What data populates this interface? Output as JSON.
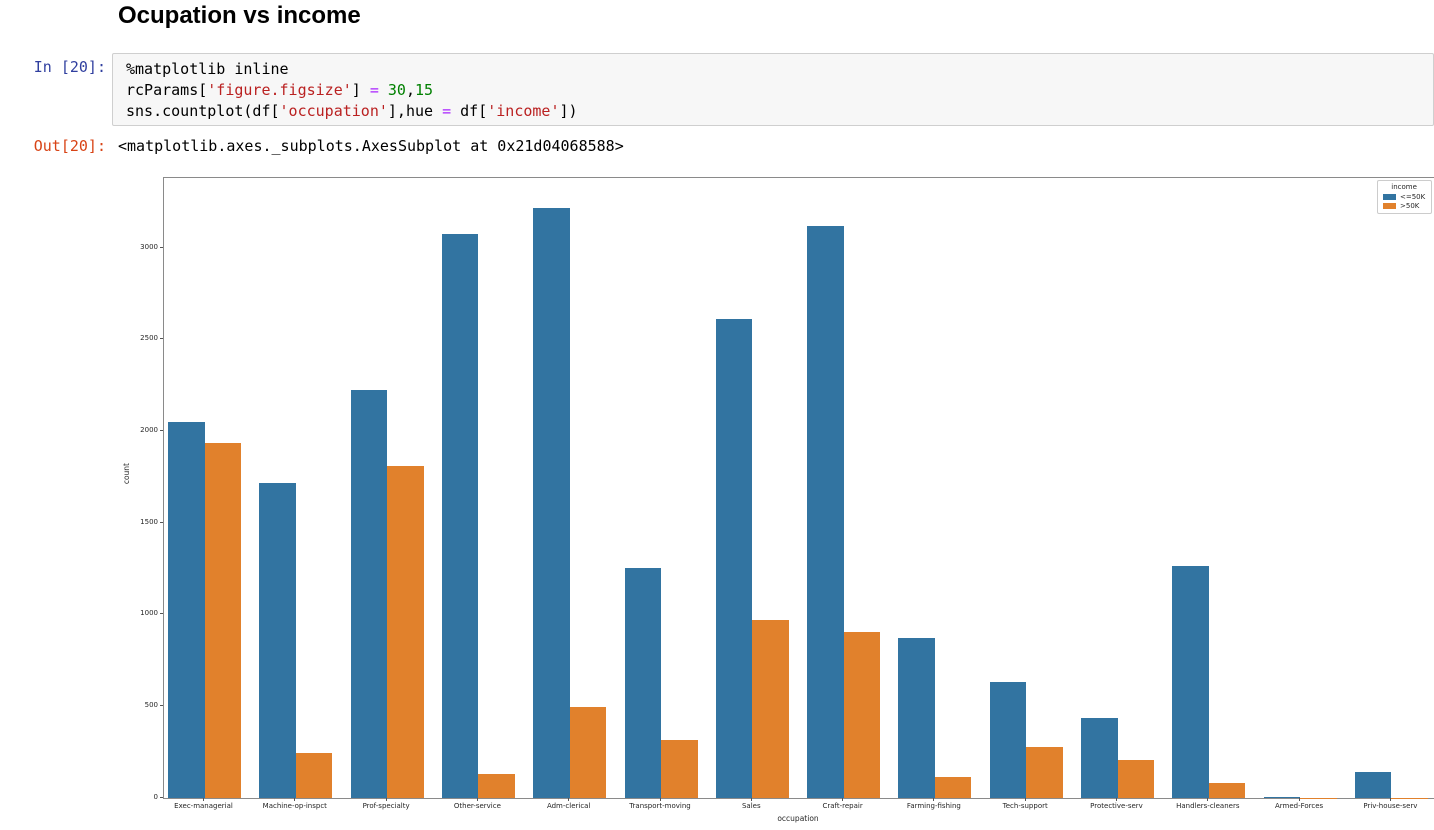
{
  "notebook": {
    "markdown_title": "Ocupation vs income",
    "cell": {
      "in_prompt": "In [20]:",
      "out_prompt": "Out[20]:",
      "code_lines": [
        [
          {
            "t": "%matplotlib inline",
            "c": "plain"
          }
        ],
        [
          {
            "t": "rcParams[",
            "c": "plain"
          },
          {
            "t": "'figure.figsize'",
            "c": "str"
          },
          {
            "t": "] ",
            "c": "plain"
          },
          {
            "t": "=",
            "c": "op"
          },
          {
            "t": " ",
            "c": "plain"
          },
          {
            "t": "30",
            "c": "num"
          },
          {
            "t": ",",
            "c": "plain"
          },
          {
            "t": "15",
            "c": "num"
          }
        ],
        [
          {
            "t": "sns.countplot(df[",
            "c": "plain"
          },
          {
            "t": "'occupation'",
            "c": "str"
          },
          {
            "t": "],hue ",
            "c": "plain"
          },
          {
            "t": "=",
            "c": "op"
          },
          {
            "t": " df[",
            "c": "plain"
          },
          {
            "t": "'income'",
            "c": "str"
          },
          {
            "t": "])",
            "c": "plain"
          }
        ]
      ],
      "output_text": "<matplotlib.axes._subplots.AxesSubplot at 0x21d04068588>"
    }
  },
  "chart_data": {
    "type": "bar",
    "title": "",
    "xlabel": "occupation",
    "ylabel": "count",
    "categories": [
      "Exec-managerial",
      "Machine-op-inspct",
      "Prof-specialty",
      "Other-service",
      "Adm-clerical",
      "Transport-moving",
      "Sales",
      "Craft-repair",
      "Farming-fishing",
      "Tech-support",
      "Protective-serv",
      "Handlers-cleaners",
      "Armed-Forces",
      "Priv-house-serv"
    ],
    "series": [
      {
        "name": "<=50K",
        "color": "#3274a1",
        "values": [
          2055,
          1721,
          2227,
          3080,
          3223,
          1257,
          2614,
          3122,
          876,
          634,
          436,
          1267,
          8,
          142
        ]
      },
      {
        "name": ">50K",
        "color": "#e1812c",
        "values": [
          1937,
          245,
          1811,
          132,
          498,
          315,
          970,
          908,
          113,
          278,
          208,
          83,
          1,
          1
        ]
      }
    ],
    "ylim": [
      0,
      3384
    ],
    "yticks": [
      0,
      500,
      1000,
      1500,
      2000,
      2500,
      3000
    ],
    "legend_title": "income",
    "legend_position": "upper right",
    "grid": false
  }
}
